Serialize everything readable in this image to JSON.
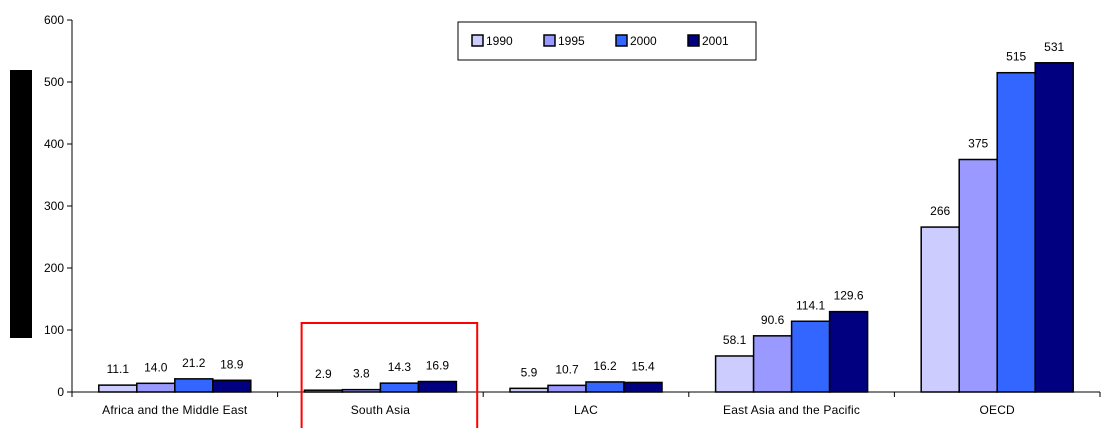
{
  "chart_data": {
    "type": "bar",
    "categories": [
      "Africa and the Middle East",
      "South Asia",
      "LAC",
      "East Asia and the Pacific",
      "OECD"
    ],
    "series": [
      {
        "name": "1990",
        "values": [
          11.1,
          2.9,
          5.9,
          58.1,
          266
        ],
        "labels": [
          "11.1",
          "2.9",
          "5.9",
          "58.1",
          "266"
        ],
        "color": "#ccccff"
      },
      {
        "name": "1995",
        "values": [
          14.0,
          3.8,
          10.7,
          90.6,
          375
        ],
        "labels": [
          "14.0",
          "3.8",
          "10.7",
          "90.6",
          "375"
        ],
        "color": "#9999ff"
      },
      {
        "name": "2000",
        "values": [
          21.2,
          14.3,
          16.2,
          114.1,
          515
        ],
        "labels": [
          "21.2",
          "14.3",
          "16.2",
          "114.1",
          "515"
        ],
        "color": "#3366ff"
      },
      {
        "name": "2001",
        "values": [
          18.9,
          16.9,
          15.4,
          129.6,
          531
        ],
        "labels": [
          "18.9",
          "16.9",
          "15.4",
          "129.6",
          "531"
        ],
        "color": "#000080"
      }
    ],
    "ylim": [
      0,
      600
    ],
    "yticks": [
      0,
      100,
      200,
      300,
      400,
      500,
      600
    ],
    "title": "",
    "xlabel": "",
    "ylabel": "",
    "legend": "top-center",
    "grid": false,
    "highlight_category": "South Asia",
    "highlight_color": "#ff0000"
  }
}
